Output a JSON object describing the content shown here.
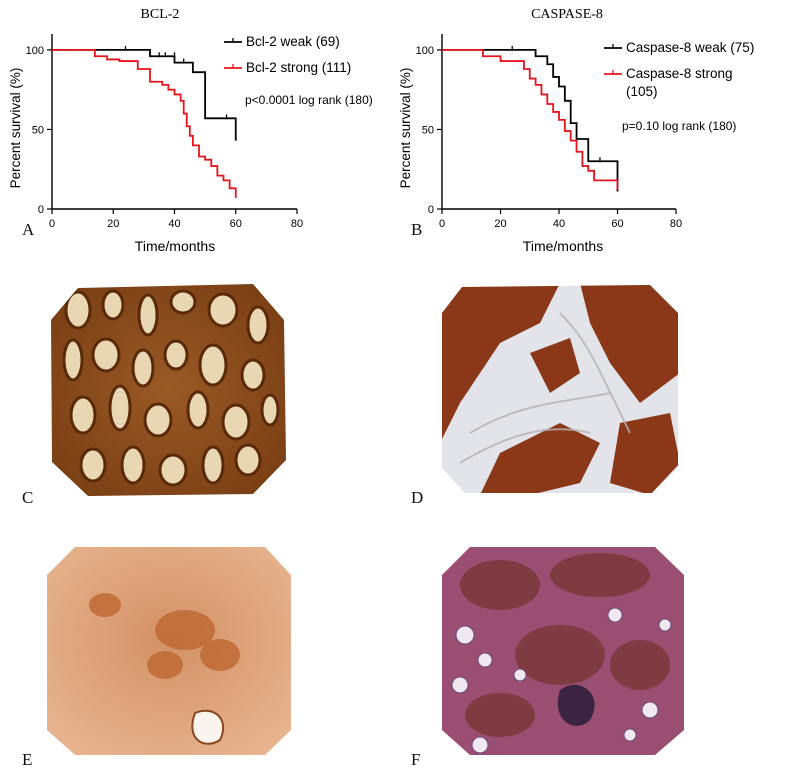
{
  "panel_labels": {
    "A": "A",
    "B": "B",
    "C": "C",
    "D": "D",
    "E": "E",
    "F": "F"
  },
  "colors": {
    "weak": "#000000",
    "strong": "#e8141b"
  },
  "chart_data": [
    {
      "type": "line",
      "step": true,
      "title": "BCL-2",
      "xlabel": "Time/months",
      "ylabel": "Percent survival (%)",
      "xlim": [
        0,
        80
      ],
      "ylim": [
        0,
        110
      ],
      "xticks": [
        "0",
        "20",
        "40",
        "60",
        "80"
      ],
      "yticks": [
        "0",
        "50",
        "100"
      ],
      "annotation": "p<0.0001 log rank (180)",
      "legend_position": "top-right",
      "series": [
        {
          "name": "Bcl-2 weak (69)",
          "color": "#000000",
          "x": [
            0,
            30,
            32,
            38,
            40,
            46,
            50,
            56,
            60
          ],
          "y": [
            100,
            100,
            96,
            96,
            92,
            86,
            57,
            57,
            43
          ],
          "censor_x": [
            24,
            35,
            37,
            40,
            43,
            57
          ],
          "censor_y": [
            100,
            96,
            96,
            96,
            92,
            57
          ]
        },
        {
          "name": "Bcl-2 strong (111)",
          "color": "#e8141b",
          "x": [
            0,
            12,
            14,
            18,
            22,
            28,
            32,
            36,
            38,
            40,
            42,
            43,
            44,
            45,
            46,
            48,
            50,
            52,
            54,
            56,
            58,
            60
          ],
          "y": [
            100,
            100,
            96,
            94,
            93,
            88,
            80,
            78,
            75,
            72,
            68,
            60,
            52,
            46,
            40,
            33,
            31,
            27,
            21,
            18,
            13,
            7
          ],
          "censor_x": [],
          "censor_y": []
        }
      ]
    },
    {
      "type": "line",
      "step": true,
      "title": "CASPASE-8",
      "xlabel": "Time/months",
      "ylabel": "Percent survival (%)",
      "xlim": [
        0,
        80
      ],
      "ylim": [
        0,
        110
      ],
      "xticks": [
        "0",
        "20",
        "40",
        "60",
        "80"
      ],
      "yticks": [
        "0",
        "50",
        "100"
      ],
      "annotation": "p=0.10 log rank (180)",
      "legend_position": "top-right",
      "series": [
        {
          "name": "Caspase-8 weak (75)",
          "color": "#000000",
          "x": [
            0,
            30,
            32,
            36,
            38,
            40,
            42,
            44,
            46,
            50,
            60
          ],
          "y": [
            100,
            100,
            96,
            91,
            83,
            77,
            68,
            54,
            44,
            30,
            11
          ],
          "censor_x": [
            24,
            54
          ],
          "censor_y": [
            100,
            30
          ]
        },
        {
          "name": "Caspase-8 strong (105)",
          "color": "#e8141b",
          "x": [
            0,
            12,
            14,
            20,
            28,
            30,
            32,
            34,
            36,
            38,
            40,
            42,
            44,
            46,
            48,
            50,
            52,
            60
          ],
          "y": [
            100,
            100,
            96,
            93,
            88,
            82,
            78,
            72,
            66,
            61,
            56,
            49,
            43,
            36,
            27,
            24,
            18,
            12
          ],
          "censor_x": [],
          "censor_y": []
        }
      ]
    }
  ]
}
